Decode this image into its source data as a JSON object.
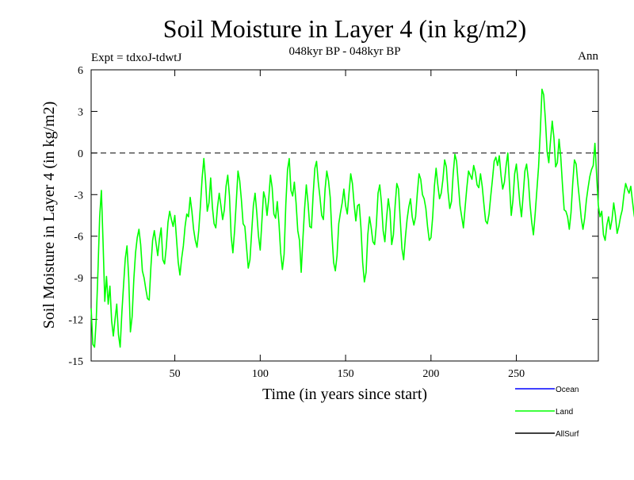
{
  "chart_data": {
    "type": "line",
    "title": "Soil Moisture in Layer 4 (in kg/m2)",
    "subtitle": "048kyr BP - 048kyr BP",
    "experiment": "Expt = tdxoJ-tdwtJ",
    "period": "Ann",
    "xlabel": "Time (in years since start)",
    "ylabel": "Soil Moisture in Layer 4 (in kg/m2)",
    "xlim": [
      1,
      298
    ],
    "ylim": [
      -15,
      6
    ],
    "xticks": [
      50,
      100,
      150,
      200,
      250
    ],
    "yticks": [
      6,
      3,
      0,
      -3,
      -6,
      -9,
      -12,
      -15
    ],
    "zero_line": 0,
    "legend_position": "bottom-right",
    "legend": [
      {
        "name": "Ocean",
        "color": "#0000ff"
      },
      {
        "name": "Land",
        "color": "#00ff00"
      },
      {
        "name": "AllSurf",
        "color": "#000000"
      }
    ],
    "series": [
      {
        "name": "Land",
        "color": "#00ff00",
        "x_start": 1,
        "x_step": 1,
        "values": [
          -11.2,
          -13.8,
          -14.0,
          -12.0,
          -8.5,
          -4.6,
          -2.7,
          -6.5,
          -10.7,
          -8.9,
          -10.9,
          -9.6,
          -12.1,
          -13.2,
          -12.0,
          -10.9,
          -13.1,
          -14.0,
          -11.5,
          -9.5,
          -7.6,
          -6.7,
          -9.0,
          -12.9,
          -11.8,
          -9.1,
          -7.2,
          -6.1,
          -5.5,
          -6.6,
          -8.5,
          -9.0,
          -9.8,
          -10.5,
          -10.6,
          -8.2,
          -6.3,
          -5.6,
          -6.5,
          -7.4,
          -6.2,
          -5.4,
          -7.7,
          -8.0,
          -6.8,
          -5.0,
          -4.2,
          -4.8,
          -5.3,
          -4.5,
          -6.2,
          -7.9,
          -8.8,
          -7.6,
          -6.7,
          -5.3,
          -4.4,
          -4.6,
          -3.2,
          -4.2,
          -5.5,
          -6.3,
          -6.8,
          -5.6,
          -3.8,
          -1.8,
          -0.4,
          -2.0,
          -4.2,
          -3.6,
          -1.8,
          -3.9,
          -5.1,
          -5.4,
          -3.9,
          -2.9,
          -3.8,
          -4.8,
          -4.1,
          -2.4,
          -1.6,
          -3.1,
          -6.0,
          -7.2,
          -5.6,
          -3.5,
          -1.3,
          -2.0,
          -3.4,
          -5.1,
          -5.3,
          -6.8,
          -8.3,
          -7.7,
          -5.7,
          -3.8,
          -2.9,
          -4.3,
          -6.0,
          -7.0,
          -4.9,
          -2.8,
          -3.3,
          -4.5,
          -3.3,
          -1.6,
          -2.5,
          -4.4,
          -4.7,
          -3.5,
          -5.1,
          -7.2,
          -8.4,
          -7.3,
          -3.7,
          -1.2,
          -0.4,
          -2.7,
          -3.1,
          -2.1,
          -3.6,
          -5.6,
          -6.3,
          -8.6,
          -6.2,
          -4.0,
          -2.3,
          -3.6,
          -5.3,
          -5.4,
          -3.0,
          -1.1,
          -0.6,
          -2.1,
          -3.2,
          -4.5,
          -4.8,
          -2.6,
          -1.3,
          -2.0,
          -3.2,
          -5.9,
          -7.9,
          -8.5,
          -7.4,
          -5.1,
          -4.3,
          -3.6,
          -2.6,
          -3.8,
          -4.4,
          -2.9,
          -1.5,
          -2.2,
          -3.7,
          -4.9,
          -3.8,
          -3.7,
          -5.4,
          -7.9,
          -9.3,
          -8.6,
          -5.9,
          -4.6,
          -5.4,
          -6.4,
          -6.6,
          -5.2,
          -2.9,
          -2.3,
          -3.6,
          -5.6,
          -6.4,
          -4.7,
          -3.3,
          -4.2,
          -6.6,
          -5.9,
          -3.8,
          -2.2,
          -2.6,
          -4.8,
          -6.9,
          -7.7,
          -6.1,
          -4.8,
          -3.9,
          -3.3,
          -4.6,
          -5.2,
          -4.6,
          -2.9,
          -1.5,
          -1.9,
          -3.0,
          -3.3,
          -4.0,
          -5.3,
          -6.3,
          -6.1,
          -4.6,
          -2.4,
          -1.1,
          -2.3,
          -3.3,
          -2.9,
          -1.9,
          -0.5,
          -1.0,
          -2.8,
          -4.0,
          -3.5,
          -1.5,
          -0.1,
          -0.6,
          -2.2,
          -3.8,
          -4.6,
          -5.4,
          -3.9,
          -2.5,
          -1.3,
          -1.6,
          -1.9,
          -0.9,
          -1.4,
          -2.3,
          -2.5,
          -1.5,
          -2.4,
          -3.7,
          -4.9,
          -5.1,
          -4.4,
          -3.1,
          -1.9,
          -0.6,
          -0.3,
          -0.9,
          -0.2,
          -1.6,
          -2.6,
          -2.1,
          -0.9,
          0.0,
          -2.3,
          -4.5,
          -3.4,
          -1.5,
          -0.8,
          -2.1,
          -3.6,
          -4.6,
          -3.0,
          -1.3,
          -0.8,
          -1.9,
          -3.7,
          -5.0,
          -5.9,
          -4.4,
          -2.7,
          -1.0,
          1.5,
          4.6,
          4.2,
          2.4,
          0.1,
          -0.7,
          0.9,
          2.3,
          1.1,
          -1.0,
          -0.7,
          1.0,
          -0.3,
          -2.3,
          -4.1,
          -4.2,
          -4.6,
          -5.5,
          -4.3,
          -2.2,
          -0.5,
          -0.8,
          -2.2,
          -3.4,
          -4.7,
          -5.5,
          -4.7,
          -3.4,
          -2.5,
          -1.7,
          -1.2,
          -0.9,
          0.7,
          -1.6,
          -3.8,
          -4.6,
          -4.2,
          -5.9,
          -6.3,
          -5.2,
          -4.6,
          -5.5,
          -4.8,
          -3.6,
          -4.5,
          -5.8,
          -5.3,
          -4.6,
          -4.1,
          -3.0,
          -2.2,
          -2.6,
          -2.9,
          -2.4,
          -3.5,
          -4.5,
          -5.2,
          -6.0,
          -5.7,
          -4.5,
          -3.9,
          -3.1,
          -3.9,
          -4.7,
          -3.8,
          -2.9,
          -3.3,
          -4.2,
          -4.6,
          -3.1,
          -2.2,
          -2.7,
          -4.2,
          -3.1,
          -1.8,
          -2.9,
          -4.4,
          -5.3,
          -6.3,
          -6.8,
          -5.8,
          -4.2,
          -3.4,
          -4.1,
          -3.9,
          -2.8,
          -1.7,
          -1.3,
          -1.9,
          -3.0,
          -3.4,
          -4.4,
          -3.7,
          -2.8,
          -3.1,
          -4.0,
          -3.9,
          -3.0,
          -2.2,
          -1.9,
          -2.8,
          -4.2,
          -5.4,
          -4.1,
          -2.8,
          -2.3,
          -3.4,
          -4.8,
          -4.2,
          -2.4,
          -0.8,
          1.1,
          0.6,
          -1.2,
          -1.2,
          -1.5,
          -2.4,
          -0.4,
          -1.8,
          -3.2,
          -2.5,
          -2.9,
          -4.1,
          -4.4,
          -4.0,
          -3.1,
          -2.8,
          -3.9,
          -4.7,
          -4.2,
          -3.5,
          -2.6,
          -1.6,
          -0.8,
          -0.6,
          -0.6,
          -1.6,
          -1.7,
          0.6,
          2.2,
          0.9,
          -1.3,
          -2.4,
          -0.3,
          0.5,
          -0.6,
          -1.4,
          -1.2,
          -2.5,
          -3.1,
          -2.6,
          -3.0,
          -3.6,
          -4.0,
          -3.9,
          -4.5,
          -5.4,
          -5.9,
          -6.1,
          -4.8,
          -3.6,
          -3.0,
          -2.8,
          -3.8,
          -4.1,
          -3.2,
          -4.0,
          -5.2,
          -5.1,
          -5.3,
          -6.0,
          -6.7,
          -6.2,
          -5.0,
          -4.2,
          -3.6,
          -3.3,
          -3.5,
          -4.3,
          -4.2,
          -5.6,
          -6.4,
          -7.0,
          -6.2,
          -6.3,
          -6.7,
          -7.5,
          -8.1,
          -9.1,
          -9.3,
          -8.3,
          -6.8,
          -6.1,
          -6.3,
          -5.8,
          -7.7,
          -8.4,
          -7.0,
          -6.3,
          -5.6,
          -4.4,
          -5.0
        ]
      }
    ]
  }
}
